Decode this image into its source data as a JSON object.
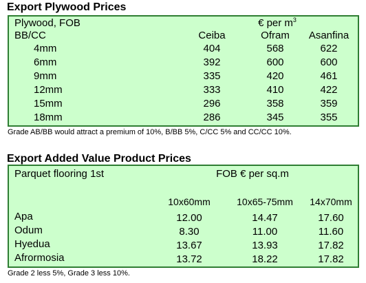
{
  "plywood": {
    "title": "Export Plywood Prices",
    "header_left": "Plywood, FOB",
    "unit_main": "€ per m",
    "unit_sup": "3",
    "grade_label": "BB/CC",
    "columns": [
      "Ceiba",
      "Ofram",
      "Asanfina"
    ],
    "rows": [
      {
        "size": "4mm",
        "values": [
          "404",
          "568",
          "622"
        ]
      },
      {
        "size": "6mm",
        "values": [
          "392",
          "600",
          "600"
        ]
      },
      {
        "size": "9mm",
        "values": [
          "335",
          "420",
          "461"
        ]
      },
      {
        "size": "12mm",
        "values": [
          "333",
          "410",
          "422"
        ]
      },
      {
        "size": "15mm",
        "values": [
          "296",
          "358",
          "359"
        ]
      },
      {
        "size": "18mm",
        "values": [
          "286",
          "345",
          "355"
        ]
      }
    ],
    "note": "Grade AB/BB would attract a premium of 10%, B/BB 5%, C/CC 5% and CC/CC 10%."
  },
  "added_value": {
    "title": "Export Added Value Product Prices",
    "header_left": "Parquet flooring 1st",
    "unit": "FOB € per sq.m",
    "columns": [
      "10x60mm",
      "10x65-75mm",
      "14x70mm"
    ],
    "rows": [
      {
        "species": "Apa",
        "values": [
          "12.00",
          "14.47",
          "17.60"
        ]
      },
      {
        "species": "Odum",
        "values": [
          "8.30",
          "11.00",
          "11.60"
        ]
      },
      {
        "species": "Hyedua",
        "values": [
          "13.67",
          "13.93",
          "17.82"
        ]
      },
      {
        "species": "Afrormosia",
        "values": [
          "13.72",
          "18.22",
          "17.82"
        ]
      }
    ],
    "note": "Grade 2 less 5%, Grade 3 less 10%."
  }
}
